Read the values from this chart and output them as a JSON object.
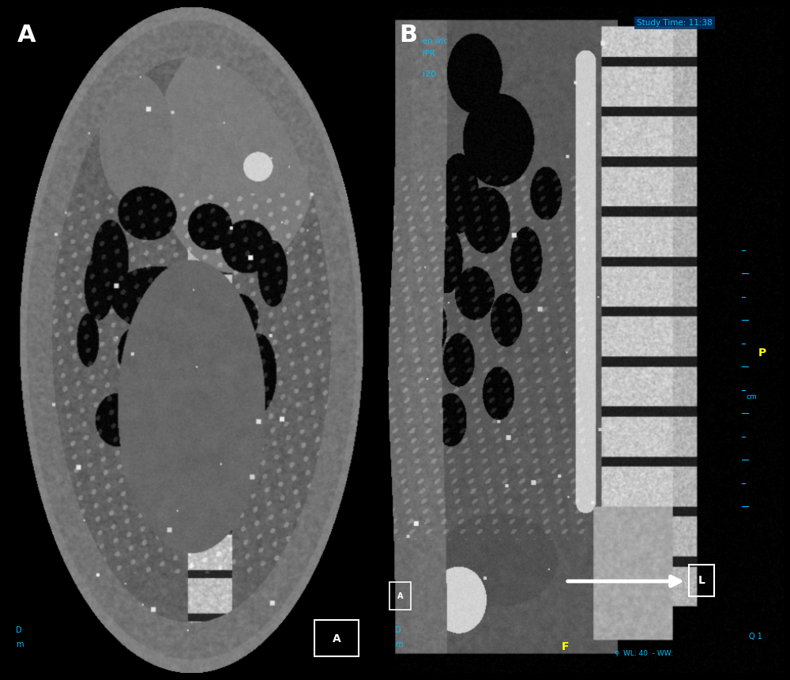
{
  "bg_color": "#000000",
  "panel_a_label": "A",
  "panel_b_label": "B",
  "panel_a_corner_label": "A",
  "panel_b_corner_label": "L",
  "study_time_text": "Study Time: 11:38",
  "study_time_color": "#00bfff",
  "study_time_bg": "#003366",
  "en_wc_text": "en w/c",
  "ipr_text": "IPR",
  "overlay_color_cyan": "#00bfff",
  "i20_text": "i20",
  "i20_color": "#00bfff",
  "p_label": "P",
  "p_color": "#ffff00",
  "f_label": "F",
  "f_color": "#ffff00",
  "wl_text": "WL: 40  - WW:",
  "wl_color": "#00bfff",
  "bottom_left_d": "D",
  "bottom_left_m": "m",
  "bottom_overlay_color": "#00bfff",
  "arrow_color": "#ffffff",
  "label_fontsize_large": 22,
  "label_fontsize_small": 10,
  "label_fontsize_tiny": 8,
  "figsize": [
    10.0,
    8.61
  ],
  "dpi": 100
}
